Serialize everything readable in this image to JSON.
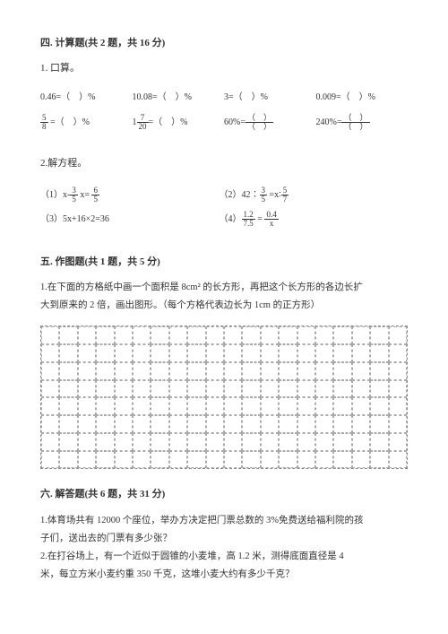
{
  "section4": {
    "title": "四. 计算题(共 2 题，共 16 分)",
    "q1_label": "1. 口算。",
    "row1": {
      "a": "0.46=（　）%",
      "b": "10.08=（　）%",
      "c": "3=（　）%",
      "d": "0.009=（　）%"
    },
    "row2": {
      "a_prefix": "",
      "a_suffix": " =（　）%",
      "a_num": "5",
      "a_den": "8",
      "b_prefix": "1",
      "b_num": "7",
      "b_den": "20",
      "b_suffix": "=（　）%",
      "c_label": "60%=",
      "c_top": "（　）",
      "c_bot": "（　）",
      "d_label": "240%=",
      "d_top": "（　）",
      "d_bot": "（　）"
    },
    "q2_label": "2.解方程。",
    "eq1_prefix": "（1）x-",
    "eq1_f1_num": "3",
    "eq1_f1_den": "5",
    "eq1_mid": " x= ",
    "eq1_f2_num": "6",
    "eq1_f2_den": "5",
    "eq2_prefix": "（2）42∶",
    "eq2_f1_num": "3",
    "eq2_f1_den": "5",
    "eq2_mid": " =x∶",
    "eq2_f2_num": "5",
    "eq2_f2_den": "7",
    "eq3": "（3）5x+16×2=36",
    "eq4_prefix": "（4）",
    "eq4_f1_num": "1.2",
    "eq4_f1_den": "7.5",
    "eq4_mid": " = ",
    "eq4_f2_num": "0.4",
    "eq4_f2_den": "x"
  },
  "section5": {
    "title": "五. 作图题(共 1 题，共 5 分)",
    "q1_line1": "1.在下面的方格纸中画一个面积是 8cm² 的长方形，再把这个长方形的各边长扩",
    "q1_line2": "大到原来的 2 倍，画出图形。（每个方格代表边长为 1cm 的正方形）"
  },
  "section6": {
    "title": "六. 解答题(共 6 题，共 31 分)",
    "q1_line1": "1.体育场共有 12000 个座位，举办方决定把门票总数的 3%免费送给福利院的孩",
    "q1_line2": "子们，送出去的门票有多少张？",
    "q2_line1": "2.在打谷场上，有一个近似于圆锥的小麦堆，高 1.2 米，测得底面直径是 4",
    "q2_line2": "米，每立方米小麦约重 350 千克，这堆小麦大约有多少千克？"
  },
  "grid": {
    "cols": 20,
    "rows": 8
  }
}
